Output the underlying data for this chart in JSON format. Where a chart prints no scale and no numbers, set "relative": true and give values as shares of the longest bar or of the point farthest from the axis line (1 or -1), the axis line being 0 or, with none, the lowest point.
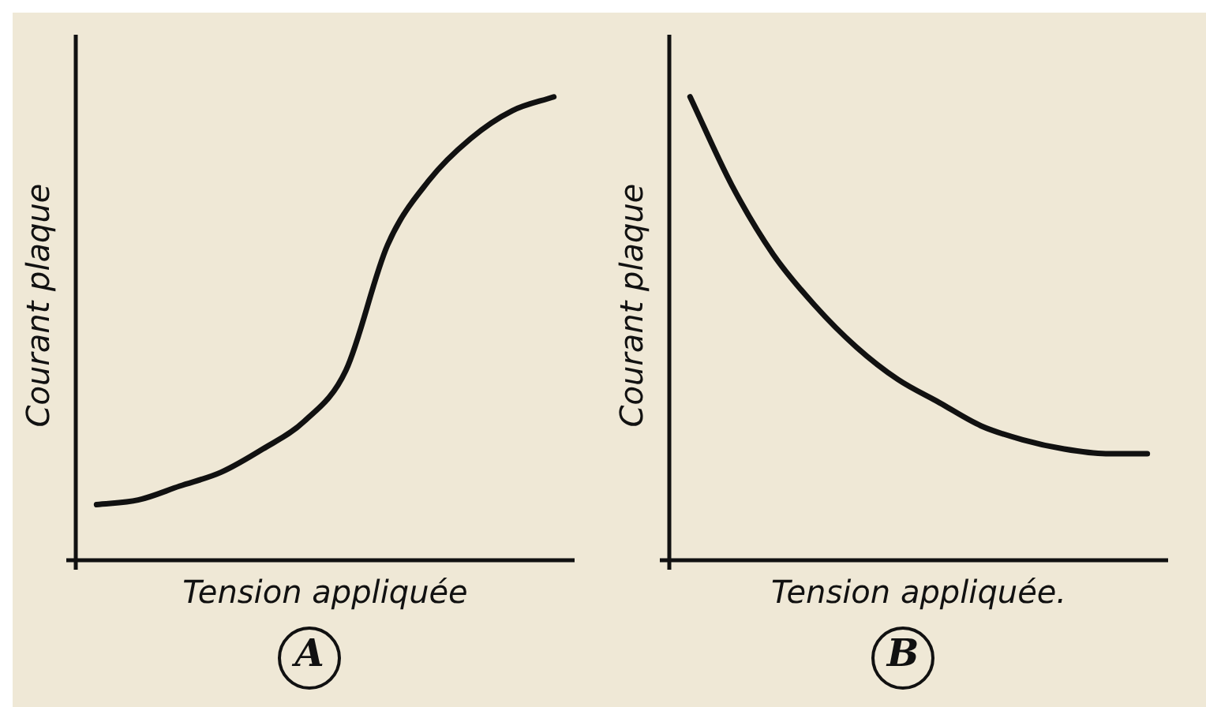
{
  "chart_data": [
    {
      "type": "line",
      "relative": true,
      "xlabel": "Tension appliquée",
      "ylabel": "Courant plaque",
      "annotations": [
        "A"
      ],
      "categories": [
        null,
        null,
        null,
        null,
        null,
        null,
        null,
        null,
        null,
        null,
        null,
        null
      ],
      "series": [
        {
          "color": "#111111",
          "values": [
            0.12,
            0.13,
            0.16,
            0.19,
            0.24,
            0.3,
            0.41,
            0.68,
            0.82,
            0.91,
            0.97,
            1
          ]
        }
      ],
      "grid": false,
      "legend": false,
      "marker": "none",
      "line_style": "solid"
    },
    {
      "type": "line",
      "relative": true,
      "xlabel": "Tension appliquée.",
      "ylabel": "Courant plaque",
      "annotations": [
        "B"
      ],
      "categories": [
        null,
        null,
        null,
        null,
        null,
        null,
        null,
        null,
        null,
        null,
        null,
        null
      ],
      "series": [
        {
          "color": "#111111",
          "values": [
            1,
            0.81,
            0.66,
            0.55,
            0.46,
            0.39,
            0.34,
            0.29,
            0.26,
            0.24,
            0.23,
            0.23
          ]
        }
      ],
      "grid": false,
      "legend": false,
      "marker": "none",
      "line_style": "solid"
    }
  ]
}
